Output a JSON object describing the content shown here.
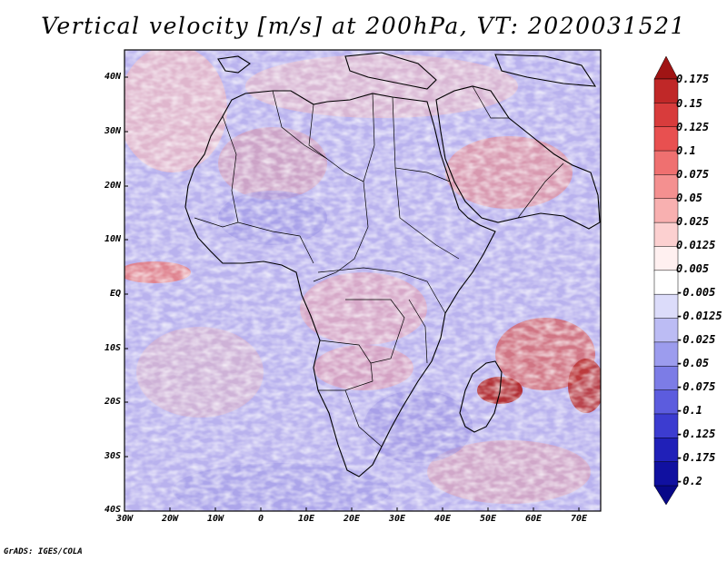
{
  "title": "Vertical velocity [m/s] at 200hPa, VT: 2020031521",
  "map": {
    "lat_labels": [
      "40N",
      "30N",
      "20N",
      "10N",
      "EQ",
      "10S",
      "20S",
      "30S",
      "40S"
    ],
    "lon_labels": [
      "30W",
      "20W",
      "10W",
      "0",
      "10E",
      "20E",
      "30E",
      "40E",
      "50E",
      "60E",
      "70E"
    ]
  },
  "colorbar": {
    "labels": [
      "0.175",
      "0.15",
      "0.125",
      "0.1",
      "0.075",
      "0.05",
      "0.025",
      "0.0125",
      "0.005",
      "-0.005",
      "-0.0125",
      "-0.025",
      "-0.05",
      "-0.075",
      "-0.1",
      "-0.125",
      "-0.175",
      "-0.2"
    ],
    "colors": [
      "#a01414",
      "#c02828",
      "#d83c3c",
      "#e85050",
      "#ef7070",
      "#f49090",
      "#f8b0b0",
      "#fcd0d0",
      "#fff0f0",
      "#ffffff",
      "#dcdcfa",
      "#bcbcf4",
      "#9c9cee",
      "#7c7ce6",
      "#5c5cde",
      "#3c3cd0",
      "#2020b8",
      "#1010a0",
      "#080888"
    ]
  },
  "credit": "GrADS: IGES/COLA"
}
